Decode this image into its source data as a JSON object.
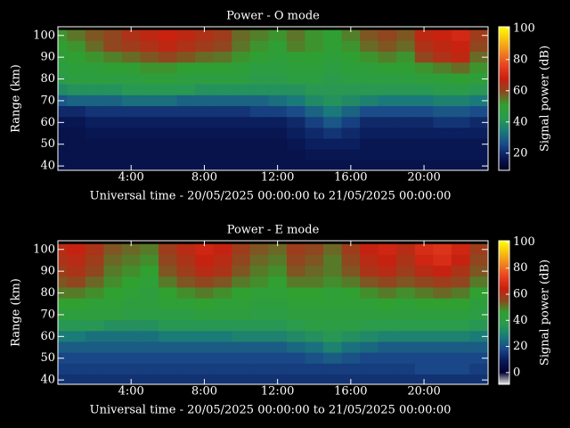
{
  "chart_data": [
    {
      "type": "heatmap",
      "title": "Power - O mode",
      "x_label": "Universal time - 20/05/2025 00:00:00 to 21/05/2025 00:00:00",
      "y_label": "Range (km)",
      "colorbar_label": "Signal power (dB)",
      "x": [
        0,
        1,
        2,
        3,
        4,
        5,
        6,
        7,
        8,
        9,
        10,
        11,
        12,
        13,
        14,
        15,
        16,
        17,
        18,
        19,
        20,
        21,
        22,
        23
      ],
      "y": [
        100,
        95,
        90,
        85,
        80,
        75,
        70,
        65,
        60,
        55,
        50,
        45,
        40
      ],
      "z": [
        [
          52,
          55,
          58,
          60,
          64,
          66,
          68,
          66,
          64,
          62,
          56,
          54,
          52,
          55,
          52,
          50,
          54,
          58,
          60,
          58,
          66,
          68,
          70,
          62
        ],
        [
          50,
          52,
          56,
          60,
          62,
          64,
          66,
          64,
          62,
          60,
          55,
          52,
          50,
          54,
          52,
          50,
          52,
          56,
          58,
          56,
          64,
          66,
          68,
          60
        ],
        [
          48,
          50,
          52,
          54,
          56,
          58,
          60,
          58,
          56,
          55,
          52,
          50,
          48,
          50,
          50,
          48,
          50,
          52,
          54,
          52,
          60,
          64,
          66,
          56
        ],
        [
          46,
          48,
          48,
          50,
          50,
          52,
          52,
          50,
          50,
          50,
          48,
          46,
          46,
          48,
          48,
          46,
          48,
          48,
          50,
          50,
          52,
          54,
          56,
          52
        ],
        [
          44,
          46,
          46,
          46,
          46,
          48,
          48,
          46,
          46,
          46,
          46,
          44,
          44,
          46,
          46,
          44,
          46,
          46,
          46,
          46,
          48,
          48,
          50,
          48
        ],
        [
          38,
          40,
          40,
          40,
          42,
          42,
          42,
          42,
          40,
          40,
          40,
          40,
          40,
          40,
          42,
          42,
          42,
          42,
          42,
          42,
          42,
          44,
          44,
          42
        ],
        [
          28,
          30,
          30,
          30,
          32,
          32,
          32,
          30,
          30,
          30,
          30,
          30,
          32,
          34,
          38,
          40,
          38,
          36,
          34,
          34,
          34,
          36,
          36,
          34
        ],
        [
          20,
          20,
          22,
          22,
          22,
          22,
          22,
          22,
          22,
          22,
          22,
          24,
          24,
          26,
          30,
          34,
          30,
          26,
          26,
          26,
          26,
          28,
          28,
          26
        ],
        [
          16,
          16,
          18,
          18,
          18,
          18,
          18,
          18,
          18,
          18,
          18,
          18,
          18,
          20,
          24,
          28,
          24,
          20,
          20,
          20,
          20,
          22,
          22,
          20
        ],
        [
          15,
          15,
          16,
          16,
          16,
          16,
          16,
          16,
          16,
          16,
          16,
          16,
          16,
          18,
          20,
          22,
          20,
          18,
          18,
          18,
          18,
          18,
          18,
          18
        ],
        [
          15,
          15,
          15,
          15,
          15,
          15,
          15,
          15,
          15,
          15,
          15,
          15,
          15,
          16,
          18,
          18,
          18,
          16,
          16,
          16,
          16,
          16,
          16,
          16
        ],
        [
          15,
          15,
          15,
          15,
          15,
          15,
          15,
          15,
          15,
          15,
          15,
          15,
          15,
          15,
          16,
          16,
          16,
          16,
          16,
          16,
          16,
          16,
          16,
          16
        ],
        [
          15,
          15,
          15,
          15,
          15,
          15,
          15,
          15,
          15,
          15,
          15,
          15,
          15,
          15,
          15,
          15,
          15,
          15,
          15,
          15,
          15,
          15,
          15,
          15
        ]
      ],
      "xlim": [
        0,
        23.5
      ],
      "ylim": [
        38,
        104
      ],
      "xticks": [
        {
          "value": 4,
          "label": "4:00"
        },
        {
          "value": 8,
          "label": "8:00"
        },
        {
          "value": 12,
          "label": "12:00"
        },
        {
          "value": 16,
          "label": "16:00"
        },
        {
          "value": 20,
          "label": "20:00"
        }
      ],
      "yticks": [
        40,
        50,
        60,
        70,
        80,
        90,
        100
      ],
      "clim": [
        9,
        101
      ],
      "cticks": [
        20,
        40,
        60,
        80,
        100
      ],
      "colorscale": [
        "#000020",
        "#0a1a5a",
        "#1a4a8a",
        "#1a7a7a",
        "#2a9a50",
        "#30a030",
        "#8a4a20",
        "#c82010",
        "#e84020",
        "#f08020",
        "#f8c010",
        "#ffff00"
      ]
    },
    {
      "type": "heatmap",
      "title": "Power - E mode",
      "x_label": "Universal time - 20/05/2025 00:00:00 to 21/05/2025 00:00:00",
      "y_label": "Range (km)",
      "colorbar_label": "Signal power (dB)",
      "x": [
        0,
        1,
        2,
        3,
        4,
        5,
        6,
        7,
        8,
        9,
        10,
        11,
        12,
        13,
        14,
        15,
        16,
        17,
        18,
        19,
        20,
        21,
        22,
        23
      ],
      "y": [
        100,
        95,
        90,
        85,
        80,
        75,
        70,
        65,
        60,
        55,
        50,
        45,
        40
      ],
      "z": [
        [
          62,
          64,
          60,
          54,
          52,
          50,
          58,
          62,
          66,
          64,
          58,
          54,
          52,
          58,
          56,
          52,
          58,
          64,
          66,
          62,
          68,
          70,
          66,
          58
        ],
        [
          60,
          62,
          58,
          52,
          50,
          48,
          56,
          60,
          64,
          62,
          56,
          52,
          50,
          56,
          54,
          50,
          56,
          62,
          64,
          60,
          66,
          68,
          64,
          56
        ],
        [
          58,
          60,
          56,
          50,
          48,
          46,
          54,
          58,
          62,
          60,
          54,
          50,
          48,
          54,
          52,
          50,
          54,
          60,
          62,
          58,
          62,
          64,
          60,
          54
        ],
        [
          54,
          56,
          52,
          48,
          46,
          44,
          50,
          54,
          56,
          54,
          50,
          48,
          46,
          50,
          50,
          48,
          50,
          54,
          56,
          54,
          56,
          58,
          56,
          50
        ],
        [
          50,
          50,
          48,
          46,
          44,
          42,
          46,
          48,
          50,
          48,
          46,
          44,
          44,
          46,
          46,
          44,
          46,
          48,
          50,
          48,
          50,
          52,
          50,
          46
        ],
        [
          46,
          46,
          44,
          44,
          42,
          42,
          44,
          44,
          46,
          44,
          44,
          42,
          42,
          44,
          44,
          44,
          44,
          44,
          46,
          44,
          46,
          46,
          46,
          42
        ],
        [
          42,
          42,
          42,
          42,
          40,
          40,
          40,
          40,
          42,
          42,
          42,
          40,
          40,
          42,
          42,
          42,
          42,
          42,
          42,
          42,
          42,
          42,
          42,
          40
        ],
        [
          36,
          36,
          36,
          34,
          34,
          34,
          36,
          36,
          36,
          36,
          36,
          36,
          36,
          38,
          40,
          40,
          40,
          38,
          38,
          38,
          38,
          38,
          38,
          36
        ],
        [
          28,
          28,
          26,
          26,
          26,
          26,
          28,
          28,
          28,
          28,
          30,
          30,
          30,
          32,
          34,
          36,
          34,
          32,
          30,
          30,
          30,
          30,
          30,
          28
        ],
        [
          22,
          22,
          22,
          22,
          22,
          22,
          22,
          22,
          22,
          22,
          22,
          22,
          22,
          24,
          26,
          30,
          26,
          24,
          22,
          22,
          22,
          22,
          22,
          22
        ],
        [
          18,
          18,
          18,
          18,
          18,
          18,
          18,
          18,
          18,
          18,
          18,
          18,
          18,
          18,
          20,
          22,
          20,
          18,
          18,
          18,
          18,
          18,
          18,
          18
        ],
        [
          16,
          16,
          16,
          16,
          16,
          16,
          16,
          16,
          16,
          16,
          16,
          16,
          16,
          16,
          16,
          16,
          16,
          16,
          16,
          16,
          18,
          18,
          18,
          16
        ],
        [
          14,
          14,
          14,
          14,
          14,
          14,
          14,
          14,
          14,
          14,
          14,
          14,
          14,
          14,
          14,
          14,
          14,
          14,
          14,
          14,
          14,
          14,
          14,
          14
        ]
      ],
      "xlim": [
        0,
        23.5
      ],
      "ylim": [
        38,
        104
      ],
      "xticks": [
        {
          "value": 4,
          "label": "4:00"
        },
        {
          "value": 8,
          "label": "8:00"
        },
        {
          "value": 12,
          "label": "12:00"
        },
        {
          "value": 16,
          "label": "16:00"
        },
        {
          "value": 20,
          "label": "20:00"
        }
      ],
      "yticks": [
        40,
        50,
        60,
        70,
        80,
        90,
        100
      ],
      "clim": [
        -9,
        101
      ],
      "cticks": [
        0,
        20,
        40,
        60,
        80,
        100
      ],
      "colorscale": [
        "#e8e8e8",
        "#000030",
        "#0a1a5a",
        "#1a4a8a",
        "#1a7a7a",
        "#2a9a50",
        "#30a030",
        "#8a4a20",
        "#c82010",
        "#e84020",
        "#f08020",
        "#f8c010",
        "#ffff00"
      ]
    }
  ]
}
